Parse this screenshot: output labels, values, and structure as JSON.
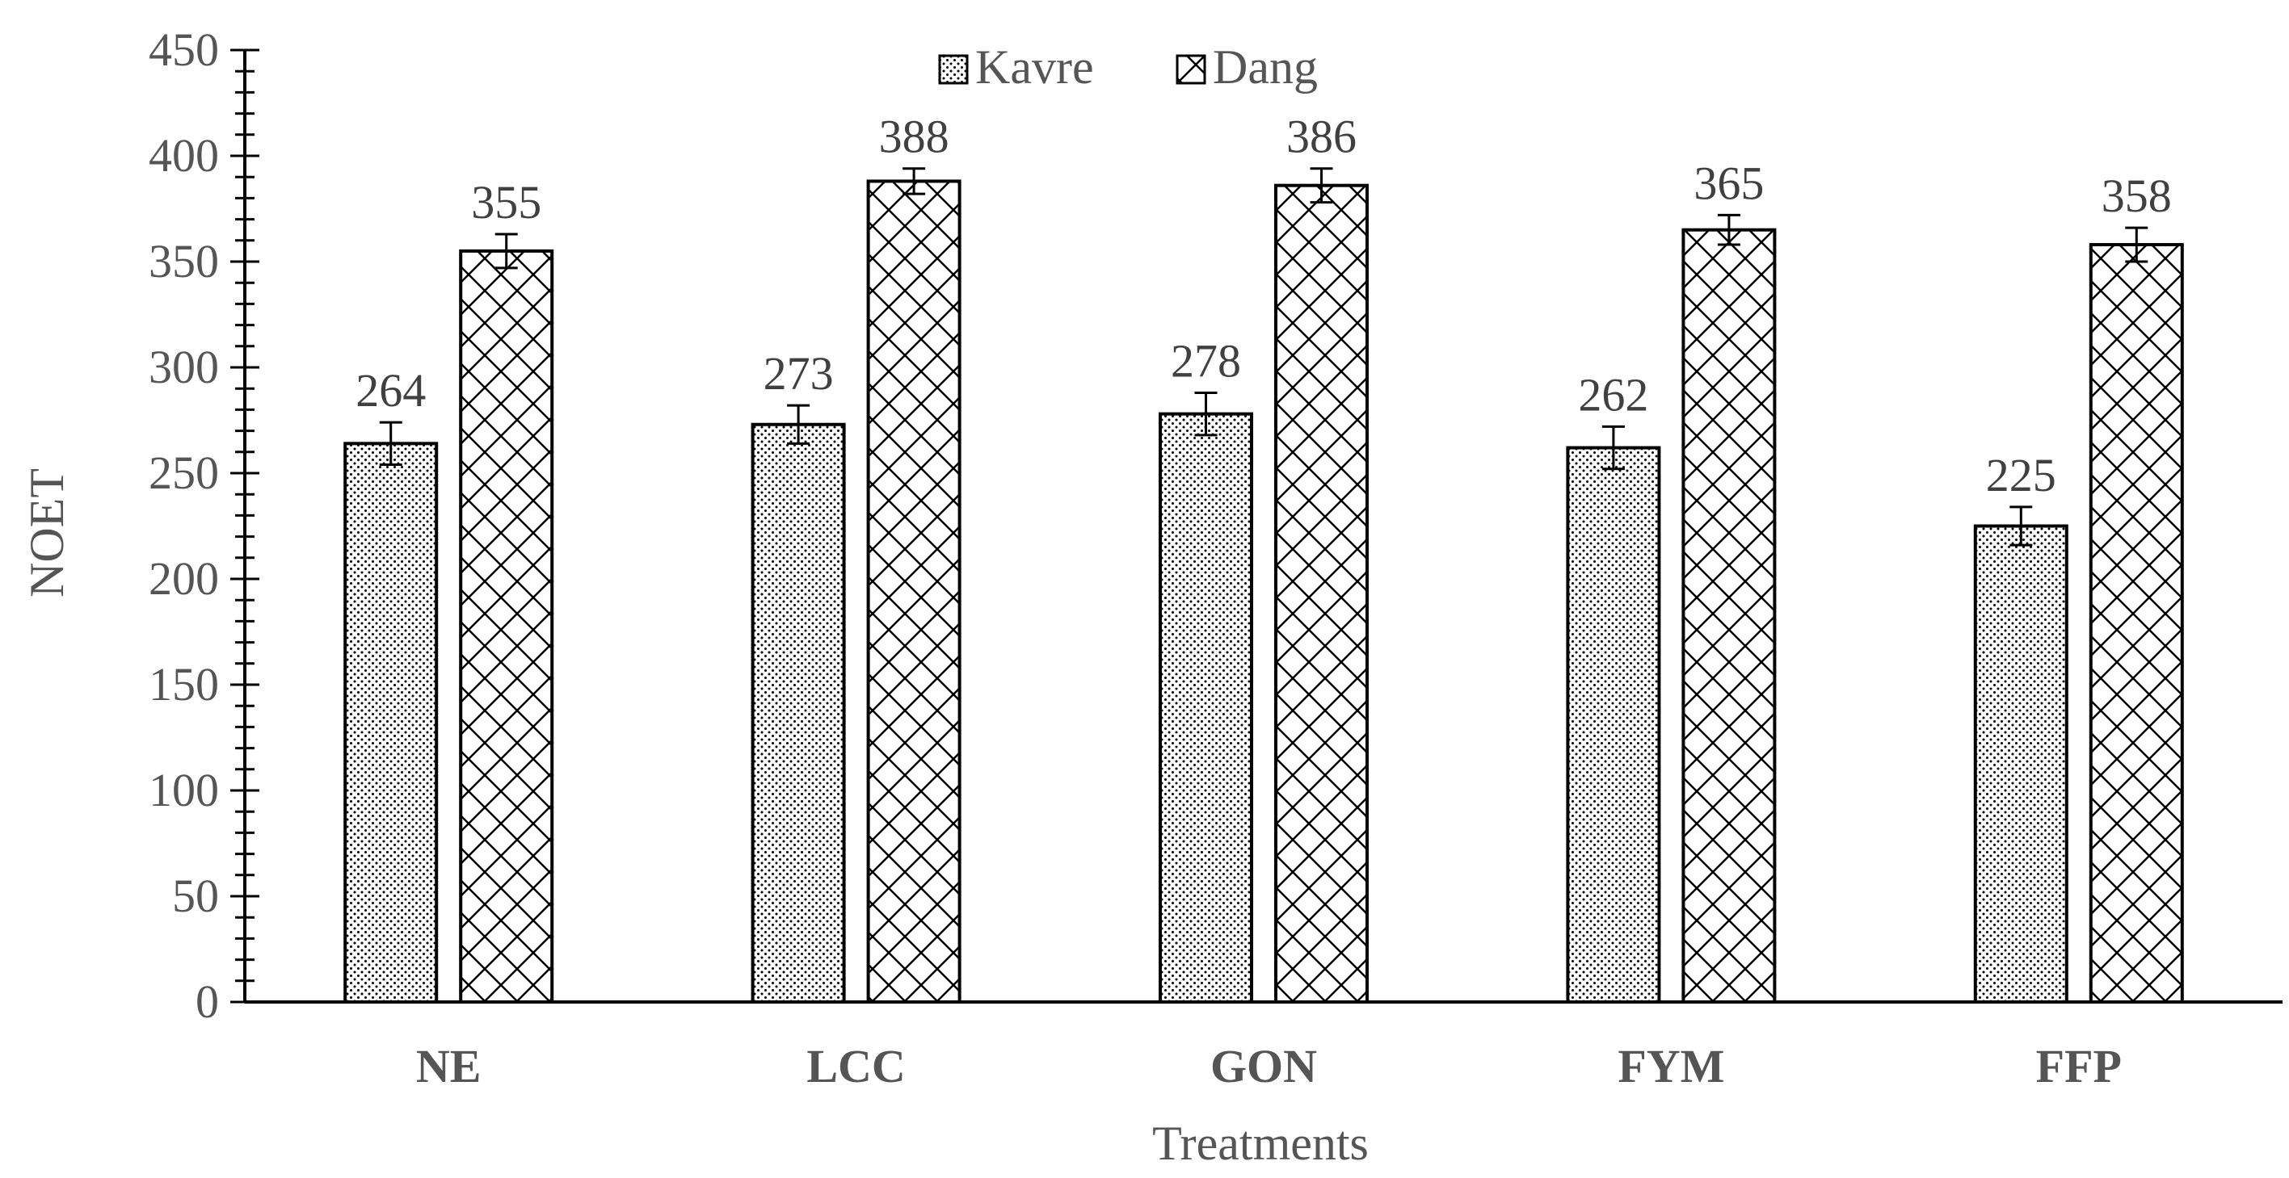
{
  "chart_data": {
    "type": "bar",
    "title": "",
    "xlabel": "Treatments",
    "ylabel": "NOET",
    "ylim": [
      0,
      450
    ],
    "yticks": [
      0,
      50,
      100,
      150,
      200,
      250,
      300,
      350,
      400,
      450
    ],
    "minor_tick_step": 10,
    "grid": false,
    "legend": {
      "position": "top-center",
      "entries": [
        "Kavre",
        "Dang"
      ]
    },
    "categories": [
      "NE",
      "LCC",
      "GON",
      "FYM",
      "FFP"
    ],
    "series": [
      {
        "name": "Kavre",
        "pattern": "dots",
        "values": [
          264,
          273,
          278,
          262,
          225
        ],
        "error": [
          10,
          9,
          10,
          10,
          9
        ]
      },
      {
        "name": "Dang",
        "pattern": "crosshatch",
        "values": [
          355,
          388,
          386,
          365,
          358
        ],
        "error": [
          8,
          6,
          8,
          7,
          8
        ]
      }
    ],
    "colors": {
      "bar_stroke": "#000000",
      "bar_fill": "#ffffff",
      "axis": "#000000",
      "text": "#555555"
    }
  }
}
